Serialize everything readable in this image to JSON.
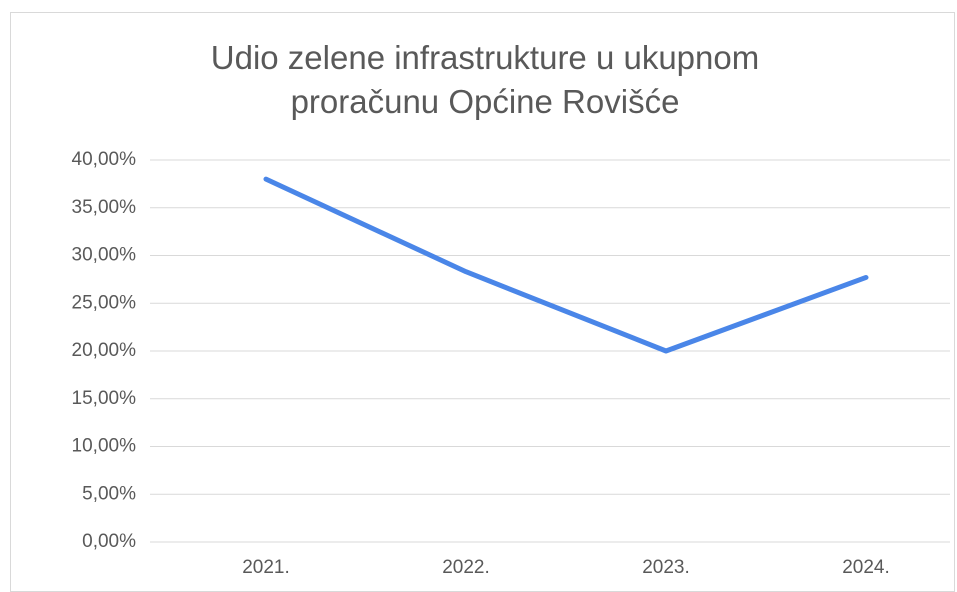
{
  "chart_data": {
    "type": "line",
    "title": "Udio zelene infrastrukture u ukupnom proračunu Općine Rovišće",
    "categories": [
      "2021.",
      "2022.",
      "2023.",
      "2024."
    ],
    "values": [
      38.0,
      28.3,
      20.0,
      27.7
    ],
    "color": "#4a86e8",
    "ylim": [
      0,
      40
    ],
    "yticks": [
      {
        "value": 0,
        "label": "0,00%"
      },
      {
        "value": 5,
        "label": "5,00%"
      },
      {
        "value": 10,
        "label": "10,00%"
      },
      {
        "value": 15,
        "label": "15,00%"
      },
      {
        "value": 20,
        "label": "20,00%"
      },
      {
        "value": 25,
        "label": "25,00%"
      },
      {
        "value": 30,
        "label": "30,00%"
      },
      {
        "value": 35,
        "label": "35,00%"
      },
      {
        "value": 40,
        "label": "40,00%"
      }
    ],
    "grid": true
  }
}
